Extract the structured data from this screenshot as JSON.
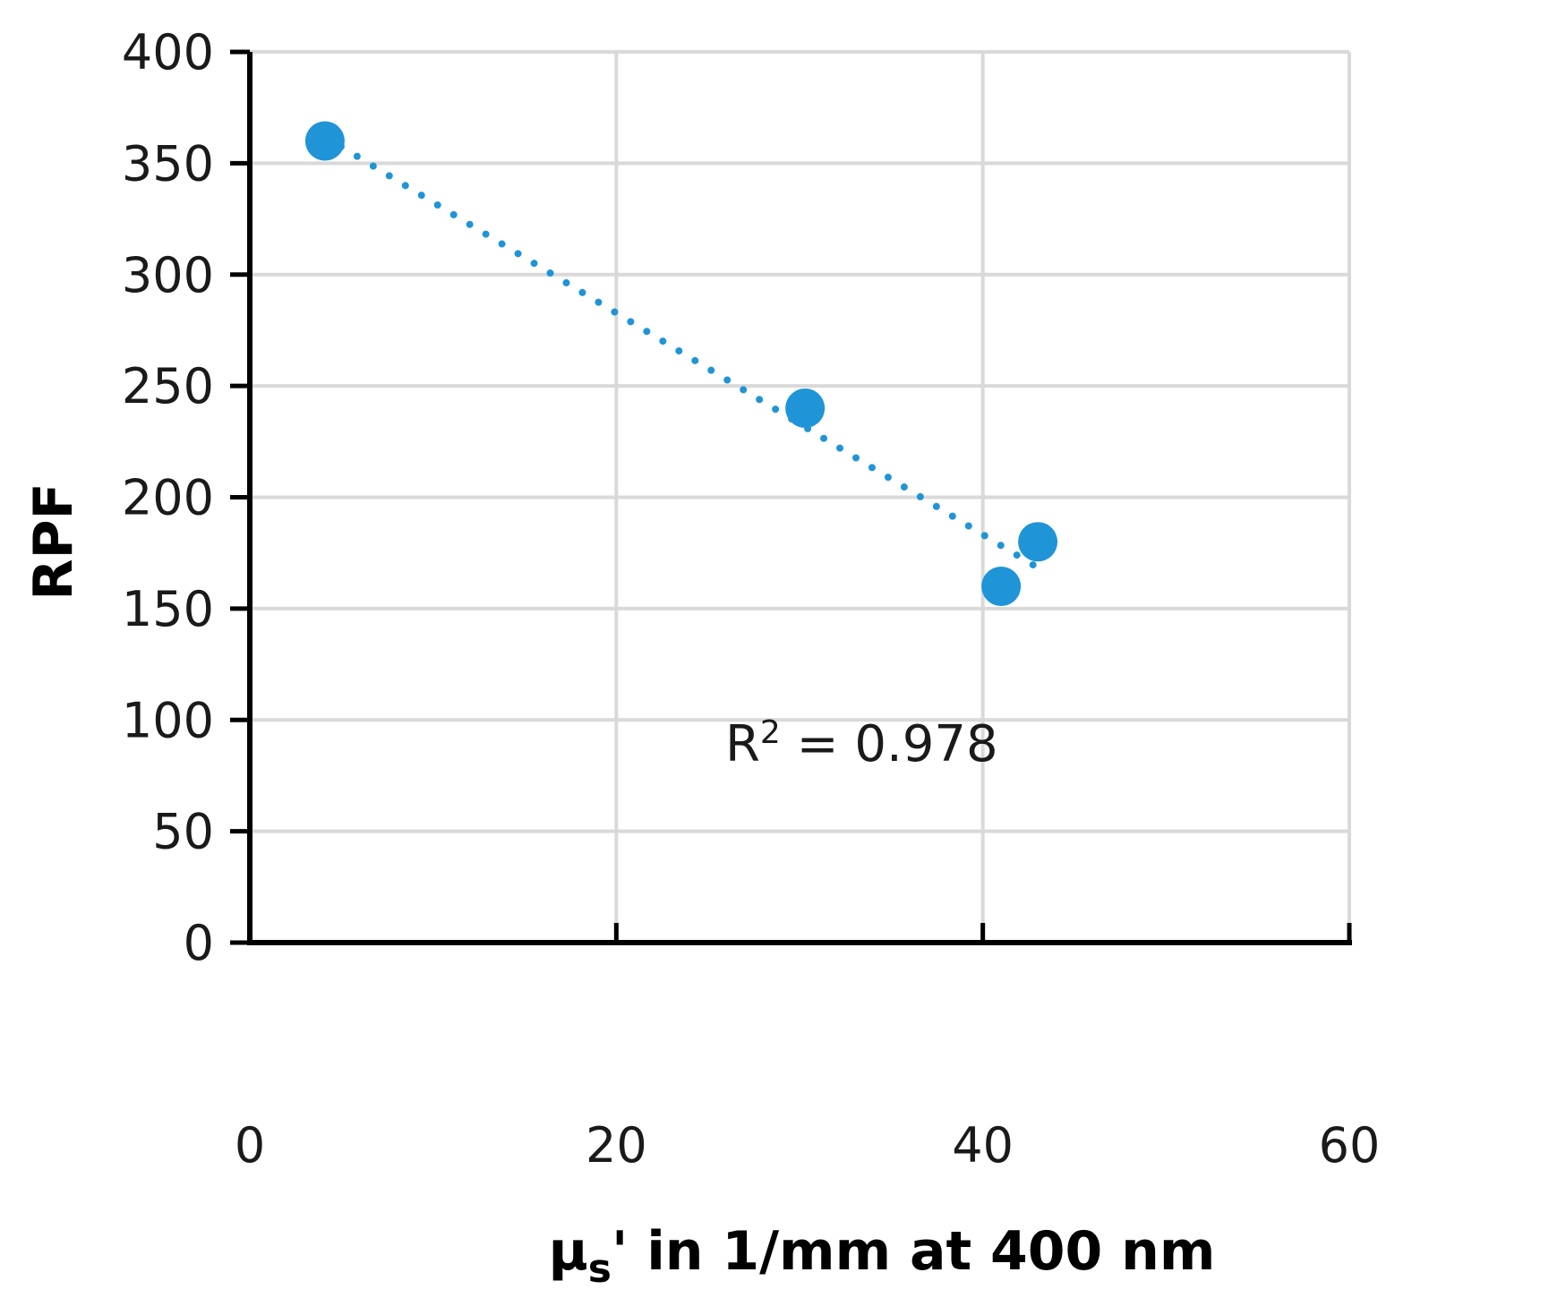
{
  "chart_data": {
    "type": "scatter",
    "title": "",
    "xlabel": "μs' in 1/mm at 400 nm",
    "xlabel_parts": {
      "symbol": "μ",
      "subscript": "s",
      "rest": "' in 1/mm at 400 nm"
    },
    "ylabel": "RPF",
    "xlim": [
      0,
      60
    ],
    "ylim": [
      0,
      400
    ],
    "x_ticks": [
      0,
      20,
      40,
      60
    ],
    "y_ticks": [
      0,
      50,
      100,
      150,
      200,
      250,
      300,
      350,
      400
    ],
    "grid": true,
    "legend": null,
    "series": [
      {
        "name": "RPF vs μs'",
        "color": "#1f94d6",
        "x": [
          4.1,
          30.3,
          41.0,
          43.0
        ],
        "y": [
          360,
          240,
          160,
          180
        ]
      }
    ],
    "trendline": {
      "type": "linear",
      "style": "dotted",
      "color": "#1f94d6",
      "x_range": [
        4.1,
        43.0
      ],
      "r_squared_label": "R² = 0.978",
      "r_squared": 0.978
    },
    "annotations": [
      {
        "text": "R² = 0.978",
        "x": 22,
        "y": 123
      }
    ]
  },
  "labels": {
    "r2_base": "R",
    "r2_sup": "2",
    "r2_rest": " = 0.978",
    "x_symbol": "μ",
    "x_sub": "s",
    "x_rest": "' in 1/mm at 400 nm",
    "y_title": "RPF"
  },
  "colors": {
    "marker": "#1f94d6",
    "grid": "#d9d9d9",
    "axis": "#000000"
  }
}
